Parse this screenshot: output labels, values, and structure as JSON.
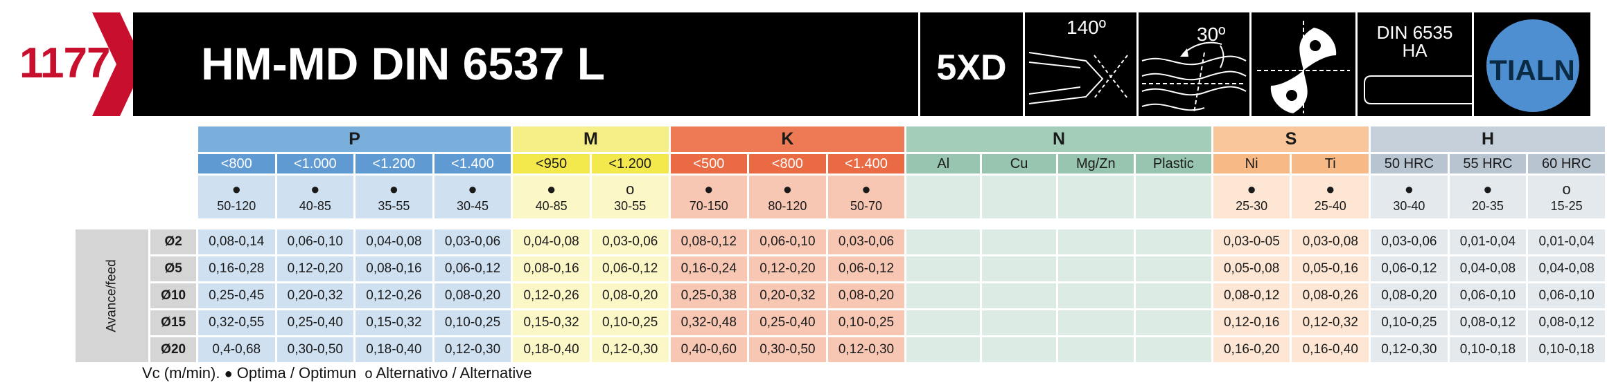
{
  "header": {
    "code": "1177",
    "title": "HM-MD DIN 6537 L",
    "icons": [
      {
        "name": "drill-depth-icon",
        "label": "5XD"
      },
      {
        "name": "point-angle-icon",
        "label": "140º"
      },
      {
        "name": "helix-angle-icon",
        "label": "30º"
      },
      {
        "name": "coolant-holes-icon",
        "label": ""
      },
      {
        "name": "shank-din-icon",
        "label": "DIN 6535\nHA"
      },
      {
        "name": "coating-icon",
        "label": "TIALN"
      }
    ],
    "colors": {
      "brand_red": "#c8102e",
      "banner": "#000000",
      "coating_circle": "#4e8fd1"
    }
  },
  "groups": [
    {
      "id": "P",
      "label": "P",
      "header_color": "#7aaedb",
      "sub_color": "#5f9ad2",
      "cell_color": "#cfe0f1",
      "cols": [
        {
          "header": "<800",
          "symbol": "optimum",
          "vc": "50-120"
        },
        {
          "header": "<1.000",
          "symbol": "optimum",
          "vc": "40-85"
        },
        {
          "header": "<1.200",
          "symbol": "optimum",
          "vc": "35-55"
        },
        {
          "header": "<1.400",
          "symbol": "optimum",
          "vc": "30-45"
        }
      ]
    },
    {
      "id": "M",
      "label": "M",
      "header_color": "#f6ee86",
      "sub_color": "#f3e84c",
      "cell_color": "#fbf7c6",
      "cols": [
        {
          "header": "<950",
          "symbol": "optimum",
          "vc": "40-85"
        },
        {
          "header": "<1.200",
          "symbol": "alternative",
          "vc": "30-55"
        }
      ]
    },
    {
      "id": "K",
      "label": "K",
      "header_color": "#ee7a55",
      "sub_color": "#ea6a44",
      "cell_color": "#f7c7b4",
      "cols": [
        {
          "header": "<500",
          "symbol": "optimum",
          "vc": "70-150"
        },
        {
          "header": "<800",
          "symbol": "optimum",
          "vc": "80-120"
        },
        {
          "header": "<1.400",
          "symbol": "optimum",
          "vc": "50-70"
        }
      ]
    },
    {
      "id": "N",
      "label": "N",
      "header_color": "#a3ccb9",
      "sub_color": "#98c5b0",
      "cell_color": "#dcece4",
      "cols": [
        {
          "header": "Al",
          "symbol": "",
          "vc": ""
        },
        {
          "header": "Cu",
          "symbol": "",
          "vc": ""
        },
        {
          "header": "Mg/Zn",
          "symbol": "",
          "vc": ""
        },
        {
          "header": "Plastic",
          "symbol": "",
          "vc": ""
        }
      ]
    },
    {
      "id": "S",
      "label": "S",
      "header_color": "#f9c69b",
      "sub_color": "#f7b985",
      "cell_color": "#fde6d3",
      "cols": [
        {
          "header": "Ni",
          "symbol": "optimum",
          "vc": "25-30"
        },
        {
          "header": "Ti",
          "symbol": "optimum",
          "vc": "25-40"
        }
      ]
    },
    {
      "id": "H",
      "label": "H",
      "header_color": "#c5d0da",
      "sub_color": "#b8c5d1",
      "cell_color": "#e4e9ee",
      "cols": [
        {
          "header": "50 HRC",
          "symbol": "optimum",
          "vc": "30-40"
        },
        {
          "header": "55 HRC",
          "symbol": "optimum",
          "vc": "20-35"
        },
        {
          "header": "60 HRC",
          "symbol": "alternative",
          "vc": "15-25"
        }
      ]
    }
  ],
  "feed": {
    "label": "Avance/feed",
    "diameter_symbol": "Ø",
    "rows": [
      {
        "dia": "2",
        "values": [
          "0,08-0,14",
          "0,06-0,10",
          "0,04-0,08",
          "0,03-0,06",
          "0,04-0,08",
          "0,03-0,06",
          "0,08-0,12",
          "0,06-0,10",
          "0,03-0,06",
          "",
          "",
          "",
          "",
          "0,03-0-05",
          "0,03-0,08",
          "0,03-0,06",
          "0,01-0,04",
          "0,01-0,04"
        ]
      },
      {
        "dia": "5",
        "values": [
          "0,16-0,28",
          "0,12-0,20",
          "0,08-0,16",
          "0,06-0,12",
          "0,08-0,16",
          "0,06-0,12",
          "0,16-0,24",
          "0,12-0,20",
          "0,06-0,12",
          "",
          "",
          "",
          "",
          "0,05-0,08",
          "0,05-0,16",
          "0,06-0,12",
          "0,04-0,08",
          "0,04-0,08"
        ]
      },
      {
        "dia": "10",
        "values": [
          "0,25-0,45",
          "0,20-0,32",
          "0,12-0,26",
          "0,08-0,20",
          "0,12-0,26",
          "0,08-0,20",
          "0,25-0,38",
          "0,20-0,32",
          "0,08-0,20",
          "",
          "",
          "",
          "",
          "0,08-0,12",
          "0,08-0,26",
          "0,08-0,20",
          "0,06-0,10",
          "0,06-0,10"
        ]
      },
      {
        "dia": "15",
        "values": [
          "0,32-0,55",
          "0,25-0,40",
          "0,15-0,32",
          "0,10-0,25",
          "0,15-0,32",
          "0,10-0,25",
          "0,32-0,48",
          "0,25-0,40",
          "0,10-0,25",
          "",
          "",
          "",
          "",
          "0,12-0,16",
          "0,12-0,32",
          "0,10-0,25",
          "0,08-0,12",
          "0,08-0,12"
        ]
      },
      {
        "dia": "20",
        "values": [
          "0,4-0,68",
          "0,30-0,50",
          "0,18-0,40",
          "0,12-0,30",
          "0,18-0,40",
          "0,12-0,30",
          "0,40-0,60",
          "0,30-0,50",
          "0,12-0,30",
          "",
          "",
          "",
          "",
          "0,16-0,20",
          "0,16-0,40",
          "0,12-0,30",
          "0,10-0,18",
          "0,10-0,18"
        ]
      }
    ]
  },
  "legend": {
    "prefix": "Vc (m/min).",
    "optimum_symbol": "●",
    "optimum_label": "Optima / Optimun",
    "alternative_symbol": "o",
    "alternative_label": "Alternativo / Alternative"
  }
}
